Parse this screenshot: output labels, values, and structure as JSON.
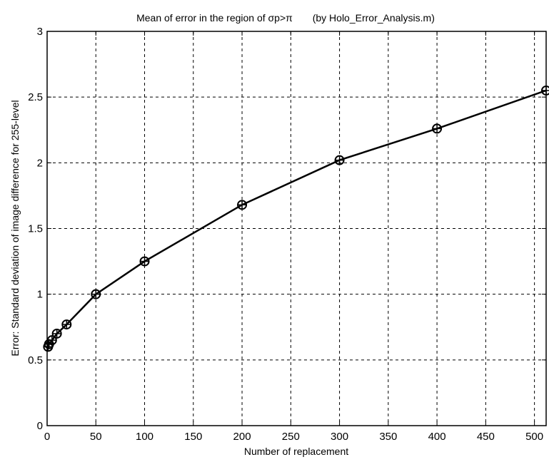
{
  "chart_data": {
    "type": "line",
    "title": "Mean of error in the region of σp>π",
    "subtitle": "(by Holo_Error_Analysis.m)",
    "xlabel": "Number of replacement",
    "ylabel": "Error: Standard deviation of image difference for 255-level",
    "xlim": [
      0,
      512
    ],
    "ylim": [
      0,
      3
    ],
    "x_ticks": [
      0,
      50,
      100,
      150,
      200,
      250,
      300,
      350,
      400,
      450,
      500
    ],
    "y_ticks": [
      0,
      0.5,
      1,
      1.5,
      2,
      2.5,
      3
    ],
    "x_tick_labels": [
      "0",
      "50",
      "100",
      "150",
      "200",
      "250",
      "300",
      "350",
      "400",
      "450",
      "500"
    ],
    "y_tick_labels": [
      "0",
      "0.5",
      "1",
      "1.5",
      "2",
      "2.5",
      "3"
    ],
    "grid": true,
    "marker": "circle-plus",
    "color": "#000000",
    "series": [
      {
        "x": [
          1,
          2,
          5,
          10,
          20,
          50,
          100,
          200,
          300,
          400,
          512
        ],
        "y": [
          0.6,
          0.62,
          0.65,
          0.7,
          0.77,
          1.0,
          1.25,
          1.68,
          2.02,
          2.26,
          2.55
        ]
      }
    ]
  }
}
